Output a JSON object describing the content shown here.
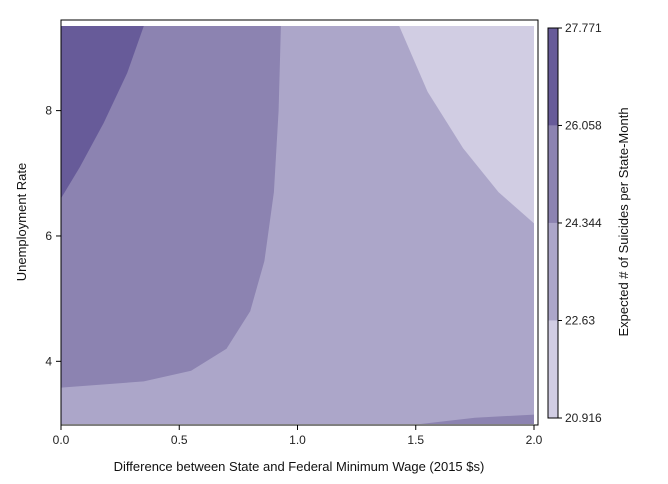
{
  "chart_data": {
    "type": "contour",
    "xlabel": "Difference between State and Federal Minimum Wage (2015 $s)",
    "ylabel": "Unemployment Rate",
    "xlim": [
      0,
      2.0
    ],
    "ylim": [
      3.0,
      9.35
    ],
    "x_ticks": [
      {
        "value": 0.0,
        "label": "0.0"
      },
      {
        "value": 0.5,
        "label": "0.5"
      },
      {
        "value": 1.0,
        "label": "1.0"
      },
      {
        "value": 1.5,
        "label": "1.5"
      },
      {
        "value": 2.0,
        "label": "2.0"
      }
    ],
    "y_ticks": [
      {
        "value": 4,
        "label": "4"
      },
      {
        "value": 6,
        "label": "6"
      },
      {
        "value": 8,
        "label": "8"
      }
    ],
    "colorbar": {
      "title": "Expected # of Suicides per State-Month",
      "levels": [
        20.916,
        22.63,
        24.344,
        26.058,
        27.771
      ],
      "tick_labels": [
        "20.916",
        "22.63",
        "24.344",
        "26.058",
        "27.771"
      ],
      "colors": [
        "#d1cde3",
        "#aca6c9",
        "#8c83b1",
        "#675b99"
      ]
    },
    "regions": [
      {
        "level_band": [
          20.916,
          22.63
        ],
        "color": "#d1cde3",
        "boundary": [
          [
            1.43,
            9.35
          ],
          [
            1.55,
            8.3
          ],
          [
            1.7,
            7.4
          ],
          [
            1.85,
            6.7
          ],
          [
            2.0,
            6.2
          ]
        ]
      },
      {
        "level_band": [
          24.344,
          26.058
        ],
        "color": "#8c83b1",
        "boundary": [
          [
            0,
            3.58
          ],
          [
            0.35,
            3.68
          ],
          [
            0.55,
            3.85
          ],
          [
            0.7,
            4.2
          ],
          [
            0.8,
            4.8
          ],
          [
            0.86,
            5.6
          ],
          [
            0.9,
            6.7
          ],
          [
            0.92,
            8.0
          ],
          [
            0.93,
            9.35
          ]
        ]
      },
      {
        "level_band": [
          26.058,
          27.771
        ],
        "color": "#675b99",
        "boundary": [
          [
            0,
            6.6
          ],
          [
            0.08,
            7.1
          ],
          [
            0.18,
            7.8
          ],
          [
            0.28,
            8.6
          ],
          [
            0.35,
            9.35
          ]
        ]
      },
      {
        "level_band": [
          24.344,
          26.058
        ],
        "color": "#8c83b1",
        "boundary": [
          [
            1.52,
            3.0
          ],
          [
            1.75,
            3.1
          ],
          [
            2.0,
            3.15
          ]
        ]
      }
    ]
  }
}
